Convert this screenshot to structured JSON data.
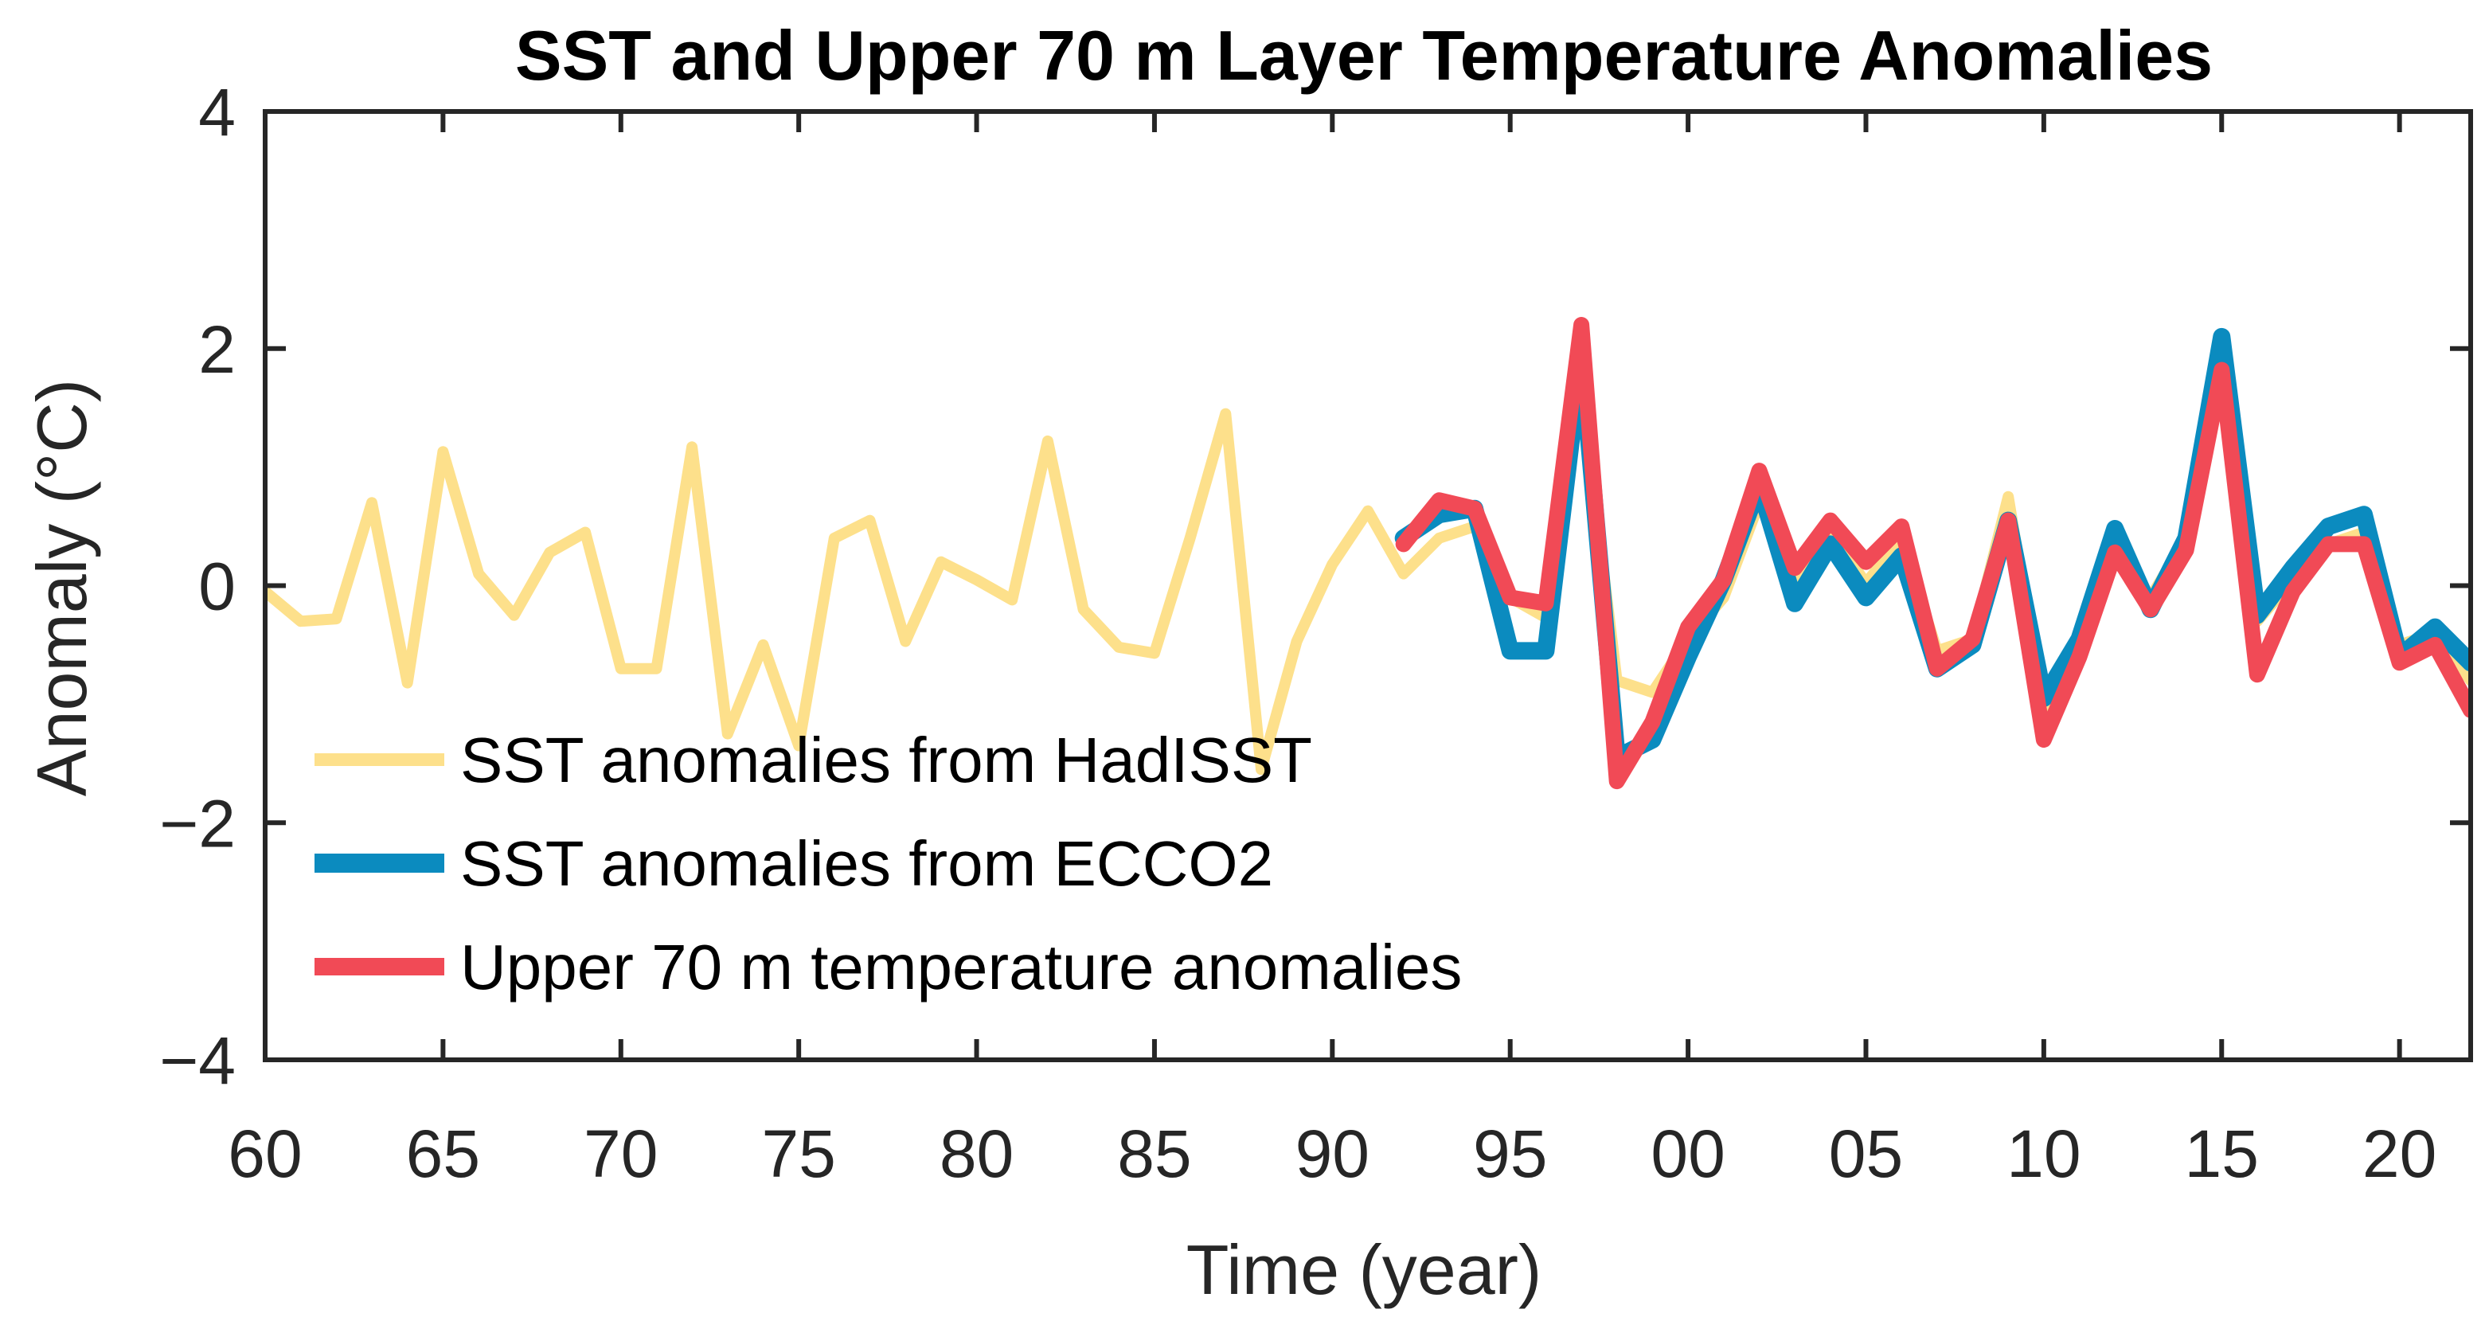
{
  "chart_data": {
    "type": "line",
    "title": "SST and Upper 70 m Layer Temperature Anomalies",
    "xlabel": "Time (year)",
    "ylabel": "Anomaly (°C)",
    "xlim": [
      1960,
      2022
    ],
    "ylim": [
      -4,
      4
    ],
    "xticks": [
      {
        "value": 1960,
        "label": "60"
      },
      {
        "value": 1965,
        "label": "65"
      },
      {
        "value": 1970,
        "label": "70"
      },
      {
        "value": 1975,
        "label": "75"
      },
      {
        "value": 1980,
        "label": "80"
      },
      {
        "value": 1985,
        "label": "85"
      },
      {
        "value": 1990,
        "label": "90"
      },
      {
        "value": 1995,
        "label": "95"
      },
      {
        "value": 2000,
        "label": "00"
      },
      {
        "value": 2005,
        "label": "05"
      },
      {
        "value": 2010,
        "label": "10"
      },
      {
        "value": 2015,
        "label": "15"
      },
      {
        "value": 2020,
        "label": "20"
      }
    ],
    "yticks": [
      {
        "value": -4,
        "label": "−4"
      },
      {
        "value": -2,
        "label": "−2"
      },
      {
        "value": 0,
        "label": "0"
      },
      {
        "value": 2,
        "label": "2"
      },
      {
        "value": 4,
        "label": "4"
      }
    ],
    "grid": false,
    "legend_position": "bottom-left",
    "series": [
      {
        "name": "SST anomalies from HadISST",
        "color": "#FDE08B",
        "stroke": 14,
        "x": [
          1960,
          1961,
          1962,
          1963,
          1964,
          1965,
          1966,
          1967,
          1968,
          1969,
          1970,
          1971,
          1972,
          1973,
          1974,
          1975,
          1976,
          1977,
          1978,
          1979,
          1980,
          1981,
          1982,
          1983,
          1984,
          1985,
          1986,
          1987,
          1988,
          1989,
          1990,
          1991,
          1992,
          1993,
          1994,
          1995,
          1996,
          1997,
          1998,
          1999,
          2000,
          2001,
          2002,
          2003,
          2004,
          2005,
          2006,
          2007,
          2008,
          2009,
          2010,
          2011,
          2012,
          2013,
          2014,
          2015,
          2016,
          2017,
          2018,
          2019,
          2020,
          2021,
          2022
        ],
        "y": [
          -0.05,
          -0.3,
          -0.28,
          0.7,
          -0.82,
          1.13,
          0.1,
          -0.25,
          0.28,
          0.45,
          -0.7,
          -0.7,
          1.17,
          -1.25,
          -0.5,
          -1.35,
          0.4,
          0.55,
          -0.47,
          0.2,
          0.05,
          -0.12,
          1.22,
          -0.2,
          -0.52,
          -0.57,
          0.4,
          1.45,
          -1.55,
          -0.47,
          0.18,
          0.63,
          0.1,
          0.4,
          0.5,
          -0.1,
          -0.27,
          1.65,
          -0.8,
          -0.9,
          -0.45,
          -0.1,
          0.7,
          0.05,
          0.45,
          0.02,
          0.4,
          -0.55,
          -0.45,
          0.75,
          -1.05,
          -0.48,
          0.35,
          -0.1,
          0.4,
          1.85,
          -0.3,
          0.05,
          0.35,
          0.45,
          -0.5,
          -0.4,
          -0.8
        ]
      },
      {
        "name": "SST anomalies from ECCO2",
        "color": "#0B8BBF",
        "stroke": 22,
        "x": [
          1992,
          1993,
          1994,
          1995,
          1996,
          1997,
          1998,
          1999,
          2000,
          2001,
          2002,
          2003,
          2004,
          2005,
          2006,
          2007,
          2008,
          2009,
          2010,
          2011,
          2012,
          2013,
          2014,
          2015,
          2016,
          2017,
          2018,
          2019,
          2020,
          2021,
          2022
        ],
        "y": [
          0.4,
          0.6,
          0.65,
          -0.55,
          -0.55,
          1.95,
          -1.45,
          -1.3,
          -0.6,
          0.05,
          0.85,
          -0.15,
          0.35,
          -0.1,
          0.25,
          -0.7,
          -0.5,
          0.55,
          -0.95,
          -0.45,
          0.48,
          -0.2,
          0.4,
          2.1,
          -0.25,
          0.15,
          0.5,
          0.6,
          -0.6,
          -0.35,
          -0.65
        ]
      },
      {
        "name": "Upper 70 m temperature anomalies",
        "color": "#F14A56",
        "stroke": 20,
        "x": [
          1992,
          1993,
          1994,
          1995,
          1996,
          1997,
          1998,
          1999,
          2000,
          2001,
          2002,
          2003,
          2004,
          2005,
          2006,
          2007,
          2008,
          2009,
          2010,
          2011,
          2012,
          2013,
          2014,
          2015,
          2016,
          2017,
          2018,
          2019,
          2020,
          2021,
          2022
        ],
        "y": [
          0.35,
          0.72,
          0.65,
          -0.1,
          -0.15,
          2.2,
          -1.65,
          -1.15,
          -0.35,
          0.05,
          0.97,
          0.15,
          0.55,
          0.2,
          0.5,
          -0.7,
          -0.45,
          0.55,
          -1.3,
          -0.6,
          0.28,
          -0.2,
          0.3,
          1.82,
          -0.75,
          -0.05,
          0.35,
          0.35,
          -0.65,
          -0.5,
          -1.05
        ]
      }
    ]
  }
}
